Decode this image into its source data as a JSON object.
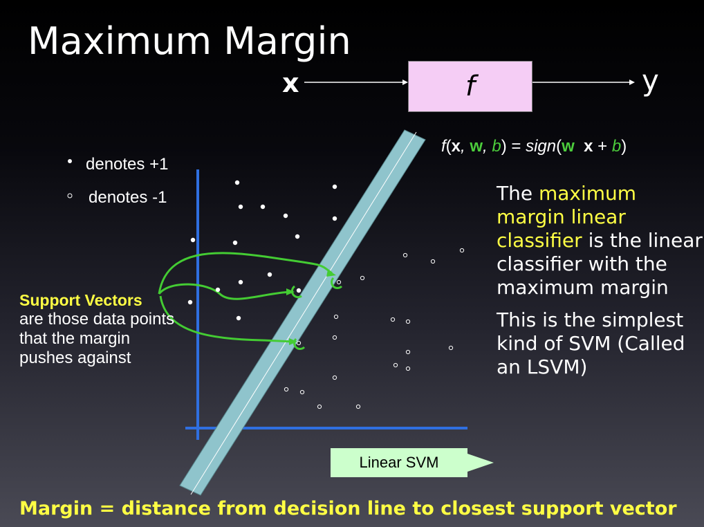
{
  "slide": {
    "title": "Maximum Margin",
    "formula": {
      "f": "f",
      "open": "(",
      "x": "x",
      "comma1": ", ",
      "w": "w",
      "comma2": ", ",
      "b": "b",
      "eq": ") = ",
      "sign": "sign",
      "paren": "(",
      "w2": "w",
      "dot": "  ",
      "x2": "x",
      "plus": " + ",
      "b2": "b",
      "close": ")"
    },
    "diagram": {
      "x_label": "x",
      "f_label": "f",
      "y_label": "y"
    },
    "legend": {
      "positive": "denotes +1",
      "negative": "denotes -1"
    },
    "description": {
      "p1_prefix": "The ",
      "p1_highlight": "maximum margin linear classifier",
      "p1_suffix": " is the linear classifier with the maximum margin",
      "p2": "This is the simplest kind of SVM (Called an LSVM)"
    },
    "support_vectors": {
      "title": "Support Vectors",
      "text": "are those data points that the margin pushes against"
    },
    "callout": "Linear SVM",
    "footer": "Margin = distance from decision line to closest support vector",
    "colors": {
      "background_top": "#000000",
      "background_bottom": "#4a4a55",
      "highlight": "#ffff44",
      "formula_green": "#4ccc3c",
      "f_box": "#f5cdf5",
      "callout_box": "#ccffcc",
      "margin_band": "#8fc4cc",
      "axis": "#2f6fe0",
      "arrow": "#44cc33"
    },
    "plot": {
      "positive_points": [
        [
          343,
          264
        ],
        [
          484,
          270
        ],
        [
          348,
          299
        ],
        [
          380,
          299
        ],
        [
          413,
          312
        ],
        [
          484,
          316
        ],
        [
          430,
          342
        ],
        [
          340,
          351
        ],
        [
          279,
          347
        ],
        [
          390,
          397
        ],
        [
          348,
          408
        ],
        [
          315,
          419
        ],
        [
          275,
          437
        ],
        [
          345,
          460
        ],
        [
          432,
          420
        ]
      ],
      "negative_points": [
        [
          586,
          369
        ],
        [
          626,
          378
        ],
        [
          668,
          362
        ],
        [
          524,
          402
        ],
        [
          490,
          408
        ],
        [
          486,
          458
        ],
        [
          568,
          462
        ],
        [
          590,
          465
        ],
        [
          484,
          488
        ],
        [
          652,
          503
        ],
        [
          590,
          509
        ],
        [
          572,
          528
        ],
        [
          590,
          533
        ],
        [
          484,
          546
        ],
        [
          414,
          563
        ],
        [
          437,
          567
        ],
        [
          462,
          588
        ],
        [
          518,
          588
        ],
        [
          432,
          496
        ]
      ]
    }
  }
}
